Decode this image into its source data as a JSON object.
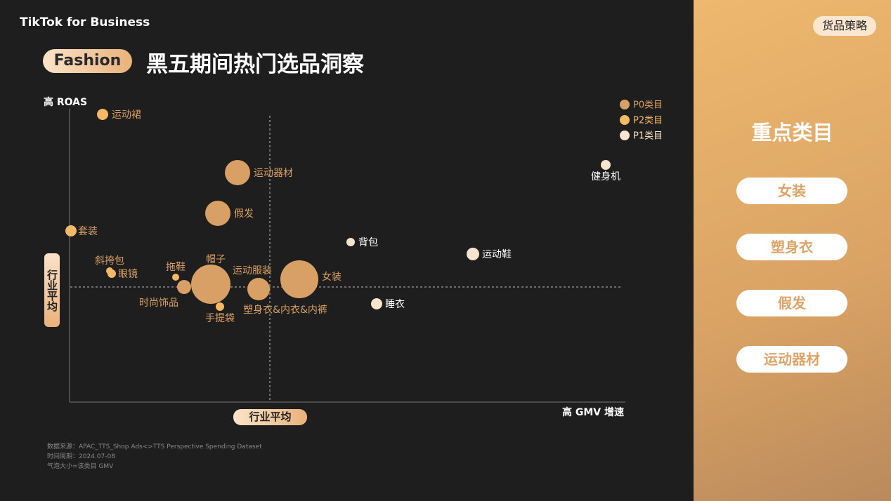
{
  "header": {
    "logo": "TikTok for Business",
    "tag": "Fashion",
    "title": "黑五期间热门选品洞察",
    "corner": "货品策略"
  },
  "chart": {
    "y_axis": "高 ROAS",
    "x_axis": "高 GMV 增速",
    "y_average": "行业平均",
    "x_average": "行业平均",
    "legend": [
      "P0类目",
      "P2类目",
      "P1类目"
    ],
    "nodes": [
      {
        "label": "运动裙"
      },
      {
        "label": "运动器材"
      },
      {
        "label": "假发"
      },
      {
        "label": "套装"
      },
      {
        "label": "背包"
      },
      {
        "label": "运动鞋"
      },
      {
        "label": "健身机"
      },
      {
        "label": "斜挎包"
      },
      {
        "label": "眼镜"
      },
      {
        "label": "拖鞋"
      },
      {
        "label": "帽子"
      },
      {
        "label": "时尚饰品"
      },
      {
        "label": "运动服装"
      },
      {
        "label": "塑身衣&内衣&内裤"
      },
      {
        "label": "手提袋"
      },
      {
        "label": "女装"
      },
      {
        "label": "睡衣"
      }
    ]
  },
  "sidebar": {
    "title": "重点类目",
    "items": [
      "女装",
      "塑身衣",
      "假发",
      "运动器材"
    ]
  },
  "footnotes": [
    "数据来源：APAC_TTS_Shop Ads<>TTS Perspective Spending Dataset",
    "时间周期：2024.07-08",
    "气泡大小=该类目 GMV"
  ]
}
